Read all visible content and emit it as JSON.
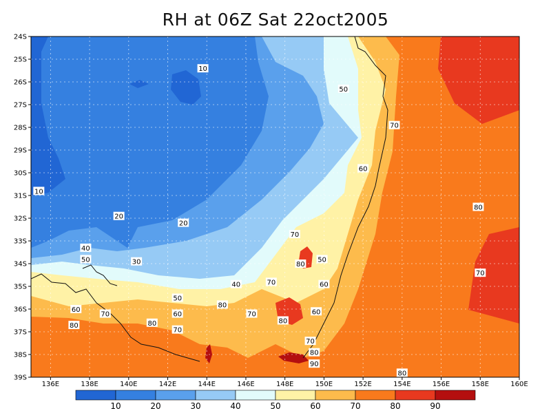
{
  "title": "RH at 06Z Sat 22oct2005",
  "lat_labels": [
    "24S",
    "25S",
    "26S",
    "27S",
    "28S",
    "29S",
    "30S",
    "31S",
    "32S",
    "33S",
    "34S",
    "35S",
    "36S",
    "37S",
    "38S",
    "39S"
  ],
  "lon_labels": [
    "136E",
    "138E",
    "140E",
    "142E",
    "144E",
    "146E",
    "148E",
    "150E",
    "152E",
    "154E",
    "156E",
    "158E",
    "160E"
  ],
  "colorbar": {
    "ticks": [
      "10",
      "20",
      "30",
      "40",
      "50",
      "60",
      "70",
      "80",
      "90"
    ],
    "colors": [
      "#2166d4",
      "#3580e0",
      "#5aa0ec",
      "#96caf5",
      "#e2fbfb",
      "#fff2a6",
      "#fdbb4c",
      "#f97a1c",
      "#e8391f",
      "#b40f0f"
    ]
  },
  "contour_labels": [
    {
      "text": "10",
      "lon": 143.8,
      "lat": 25.4
    },
    {
      "text": "10",
      "lon": 135.4,
      "lat": 30.8
    },
    {
      "text": "20",
      "lon": 139.5,
      "lat": 31.9
    },
    {
      "text": "20",
      "lon": 142.8,
      "lat": 32.2
    },
    {
      "text": "30",
      "lon": 140.4,
      "lat": 33.9
    },
    {
      "text": "40",
      "lon": 137.8,
      "lat": 33.3
    },
    {
      "text": "40",
      "lon": 145.5,
      "lat": 34.9
    },
    {
      "text": "50",
      "lon": 137.8,
      "lat": 33.8
    },
    {
      "text": "50",
      "lon": 142.5,
      "lat": 35.5
    },
    {
      "text": "50",
      "lon": 151.0,
      "lat": 26.3
    },
    {
      "text": "50",
      "lon": 149.9,
      "lat": 33.8
    },
    {
      "text": "60",
      "lon": 137.3,
      "lat": 36.0
    },
    {
      "text": "60",
      "lon": 142.5,
      "lat": 36.2
    },
    {
      "text": "60",
      "lon": 150.0,
      "lat": 34.9
    },
    {
      "text": "60",
      "lon": 149.6,
      "lat": 36.1
    },
    {
      "text": "60",
      "lon": 152.0,
      "lat": 29.8
    },
    {
      "text": "70",
      "lon": 138.8,
      "lat": 36.2
    },
    {
      "text": "70",
      "lon": 142.5,
      "lat": 36.9
    },
    {
      "text": "70",
      "lon": 147.3,
      "lat": 34.8
    },
    {
      "text": "70",
      "lon": 148.5,
      "lat": 32.7
    },
    {
      "text": "70",
      "lon": 146.3,
      "lat": 36.2
    },
    {
      "text": "70",
      "lon": 149.3,
      "lat": 37.4
    },
    {
      "text": "70",
      "lon": 153.6,
      "lat": 27.9
    },
    {
      "text": "70",
      "lon": 158.0,
      "lat": 34.4
    },
    {
      "text": "80",
      "lon": 137.2,
      "lat": 36.7
    },
    {
      "text": "80",
      "lon": 141.2,
      "lat": 36.6
    },
    {
      "text": "80",
      "lon": 144.8,
      "lat": 35.8
    },
    {
      "text": "80",
      "lon": 148.8,
      "lat": 34.0
    },
    {
      "text": "80",
      "lon": 147.9,
      "lat": 36.5
    },
    {
      "text": "80",
      "lon": 149.5,
      "lat": 37.9
    },
    {
      "text": "80",
      "lon": 157.9,
      "lat": 31.5
    },
    {
      "text": "80",
      "lon": 154.0,
      "lat": 38.8
    },
    {
      "text": "90",
      "lon": 149.5,
      "lat": 38.4
    }
  ]
}
